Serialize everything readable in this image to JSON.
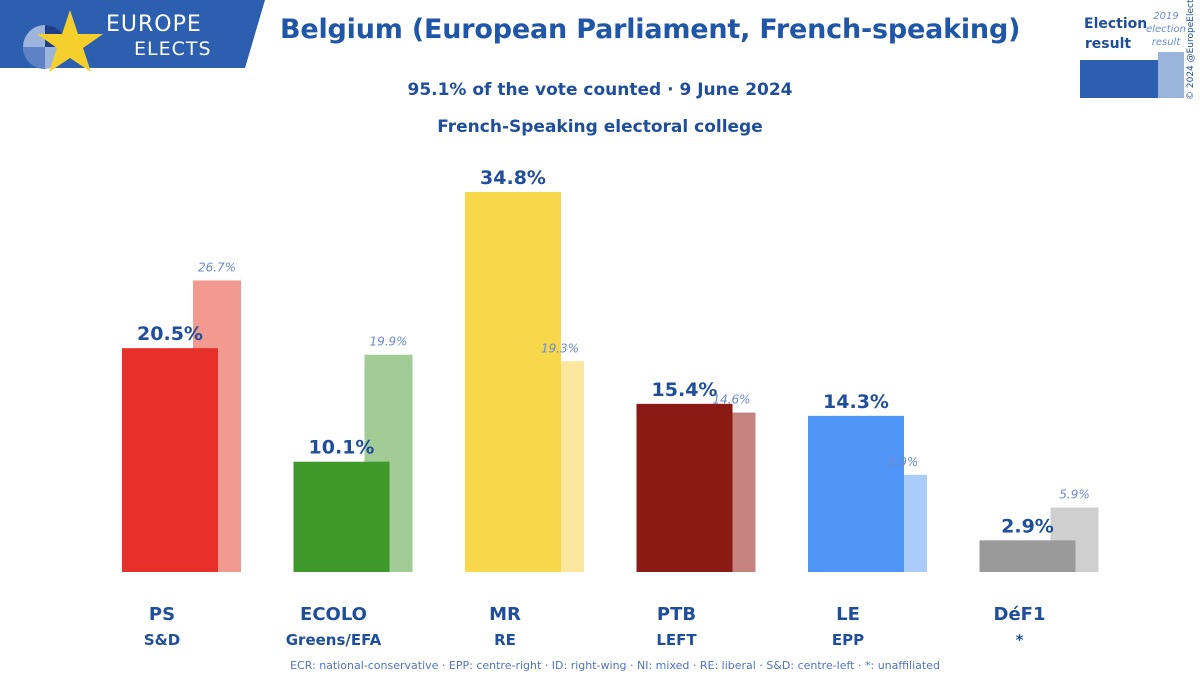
{
  "logo": {
    "line1": "EUROPE",
    "line2": "ELECTS"
  },
  "title": "Belgium (European Parliament, French-speaking)",
  "subtitle1": "95.1% of the vote counted · 9 June 2024",
  "subtitle2": "French-Speaking electoral college",
  "legend": {
    "main_label": "Election result",
    "prev_label": "2019 election result"
  },
  "copyright": "© 2024 @EuropeElects",
  "footer": "ECR: national-conservative · EPP: centre-right · ID: right-wing · NI: mixed · RE: liberal · S&D: centre-left · *: unaffiliated",
  "colors": {
    "brand": "#1f56a8",
    "logo_bg": "#2d5fb1",
    "star": "#f5cf2c"
  },
  "chart_data": {
    "type": "bar",
    "categories": [
      "PS",
      "ECOLO",
      "MR",
      "PTB",
      "LE",
      "DéF1"
    ],
    "groups": [
      "S&D",
      "Greens/EFA",
      "RE",
      "LEFT",
      "EPP",
      "*"
    ],
    "series": [
      {
        "name": "Election result",
        "values": [
          20.5,
          10.1,
          34.8,
          15.4,
          14.3,
          2.9
        ],
        "labels": [
          "20.5%",
          "10.1%",
          "34.8%",
          "15.4%",
          "14.3%",
          "2.9%"
        ]
      },
      {
        "name": "2019 election result",
        "values": [
          26.7,
          19.9,
          19.3,
          14.6,
          8.9,
          5.9
        ],
        "labels": [
          "26.7%",
          "19.9%",
          "19.3%",
          "14.6%",
          "8.9%",
          "5.9%"
        ]
      }
    ],
    "colors": [
      "#e8302a",
      "#3f992a",
      "#f7d84a",
      "#8c1a14",
      "#5096f7",
      "#9a9a9a"
    ],
    "prev_colors": [
      "#f29a90",
      "#a2cc96",
      "#fbe79e",
      "#c6837d",
      "#a9ccfb",
      "#cfcfcf"
    ],
    "ylim": [
      0,
      34.8
    ]
  }
}
